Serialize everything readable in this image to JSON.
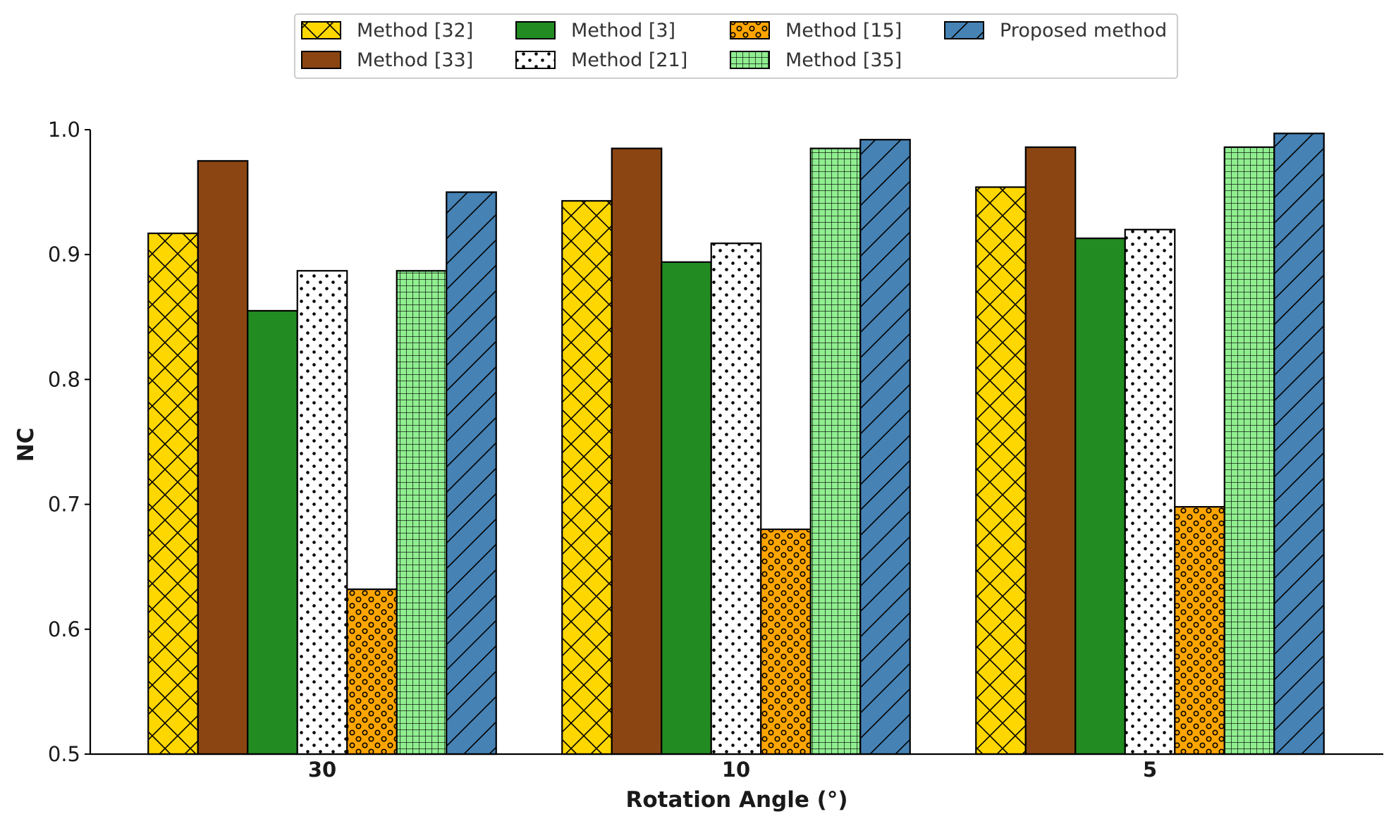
{
  "chart_data": {
    "type": "bar",
    "xlabel": "Rotation Angle (°)",
    "ylabel": "NC",
    "ylim": [
      0.5,
      1.0
    ],
    "yticks": [
      0.5,
      0.6,
      0.7,
      0.8,
      0.9,
      1.0
    ],
    "ytick_labels": [
      "0.5",
      "0.6",
      "0.7",
      "0.8",
      "0.9",
      "1.0"
    ],
    "categories": [
      "30",
      "10",
      "5"
    ],
    "legend_position": "top-center",
    "grid": false,
    "series": [
      {
        "name": "Method [32]",
        "color": "#FFD700",
        "pattern": "crosshatch",
        "values": [
          0.917,
          0.943,
          0.954
        ]
      },
      {
        "name": "Method [33]",
        "color": "#8B4513",
        "pattern": "none",
        "values": [
          0.975,
          0.985,
          0.986
        ]
      },
      {
        "name": "Method [3]",
        "color": "#228B22",
        "pattern": "none",
        "values": [
          0.855,
          0.894,
          0.913
        ]
      },
      {
        "name": "Method [21]",
        "color": "#FFFFFF",
        "pattern": "dots",
        "values": [
          0.887,
          0.909,
          0.92
        ]
      },
      {
        "name": "Method [15]",
        "color": "#FFA500",
        "pattern": "circles",
        "values": [
          0.632,
          0.68,
          0.698
        ]
      },
      {
        "name": "Method [35]",
        "color": "#90EE90",
        "pattern": "grid",
        "values": [
          0.887,
          0.985,
          0.986
        ]
      },
      {
        "name": "Proposed method",
        "color": "#4682B4",
        "pattern": "diagonal",
        "values": [
          0.95,
          0.992,
          0.997
        ]
      }
    ]
  }
}
